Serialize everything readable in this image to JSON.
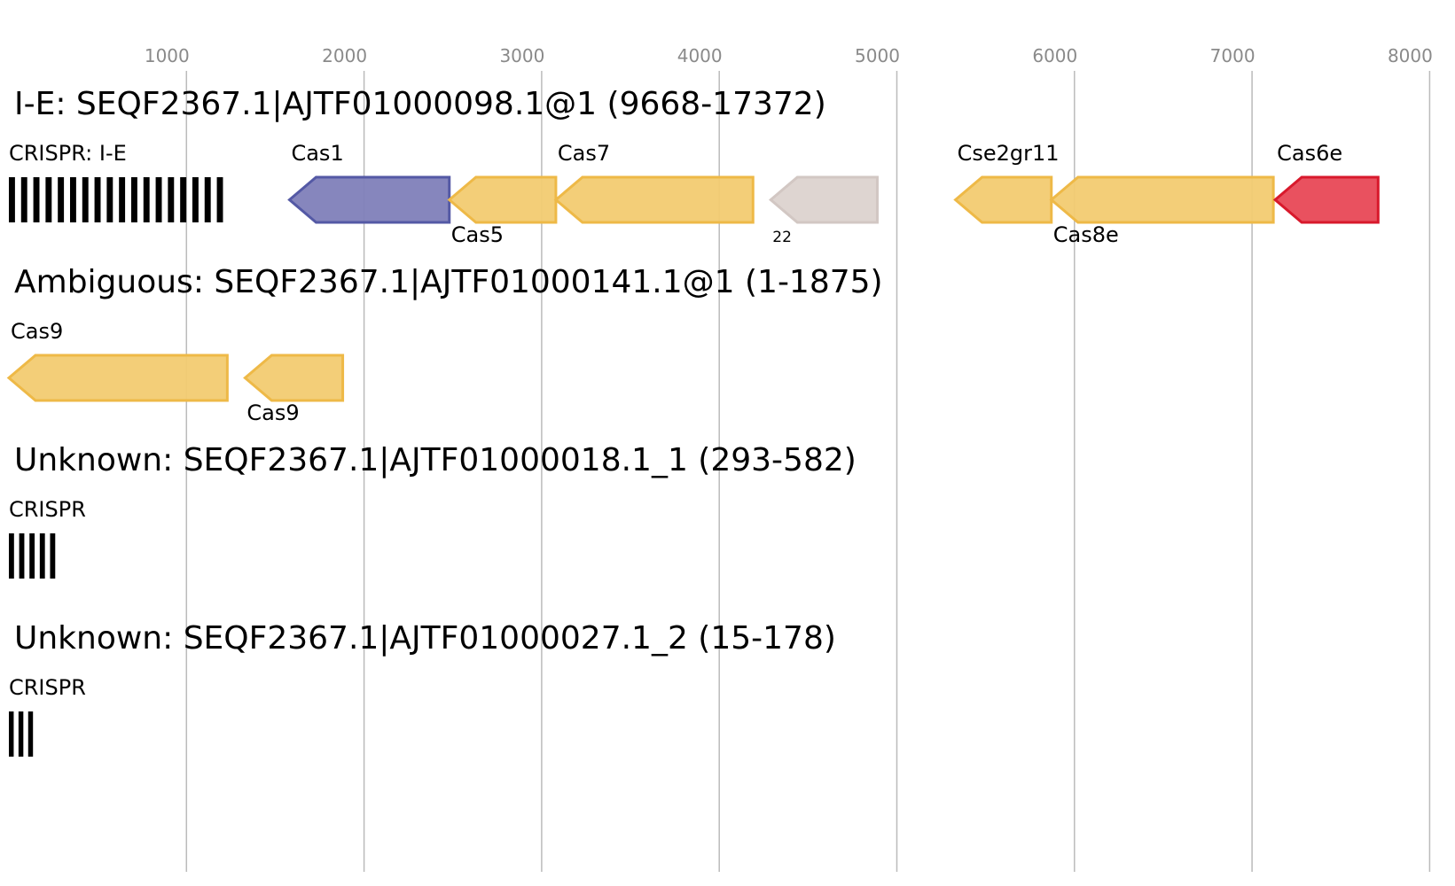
{
  "axis": {
    "ticks": [
      {
        "value": 1000,
        "label": "1000"
      },
      {
        "value": 2000,
        "label": "2000"
      },
      {
        "value": 3000,
        "label": "3000"
      },
      {
        "value": 4000,
        "label": "4000"
      },
      {
        "value": 5000,
        "label": "5000"
      },
      {
        "value": 6000,
        "label": "6000"
      },
      {
        "value": 7000,
        "label": "7000"
      },
      {
        "value": 8000,
        "label": "8000"
      }
    ]
  },
  "colors": {
    "blue": "#7f7fb9",
    "blue_stroke": "#5459a5",
    "yellow": "#f2cb71",
    "yellow_stroke": "#eeb947",
    "grey": "#dcd3cf",
    "grey_stroke": "#d2c7c3",
    "red": "#e84856",
    "red_stroke": "#d8192c",
    "crispr": "#000000",
    "gridline": "#bbbbbb"
  },
  "tracks": [
    {
      "title": "I-E: SEQF2367.1|AJTF01000098.1@1 (9668-17372)",
      "crispr": {
        "label": "CRISPR: I-E",
        "start": 0,
        "end": 1240,
        "bars": 18
      },
      "genes": [
        {
          "name": "Cas1",
          "start": 1580,
          "end": 2480,
          "strand": "-",
          "color": "blue",
          "label_pos": "above"
        },
        {
          "name": "Cas5",
          "start": 2480,
          "end": 3080,
          "strand": "-",
          "color": "yellow",
          "label_pos": "below"
        },
        {
          "name": "Cas7",
          "start": 3080,
          "end": 4190,
          "strand": "-",
          "color": "yellow",
          "label_pos": "above"
        },
        {
          "name": "22",
          "start": 4290,
          "end": 4890,
          "strand": "-",
          "color": "grey",
          "label_pos": "below",
          "small": true
        },
        {
          "name": "Cse2gr11",
          "start": 5330,
          "end": 5870,
          "strand": "-",
          "color": "yellow",
          "label_pos": "above"
        },
        {
          "name": "Cas8e",
          "start": 5870,
          "end": 7120,
          "strand": "-",
          "color": "yellow",
          "label_pos": "below"
        },
        {
          "name": "Cas6e",
          "start": 7130,
          "end": 7710,
          "strand": "-",
          "color": "red",
          "label_pos": "above"
        }
      ]
    },
    {
      "title": "Ambiguous: SEQF2367.1|AJTF01000141.1@1 (1-1875)",
      "genes": [
        {
          "name": "Cas9",
          "start": 0,
          "end": 1230,
          "strand": "-",
          "color": "yellow",
          "label_pos": "above"
        },
        {
          "name": "Cas9",
          "start": 1330,
          "end": 1880,
          "strand": "-",
          "color": "yellow",
          "label_pos": "below"
        }
      ]
    },
    {
      "title": "Unknown: SEQF2367.1|AJTF01000018.1_1 (293-582)",
      "crispr": {
        "label": "CRISPR",
        "start": 0,
        "end": 290,
        "bars": 5
      },
      "genes": []
    },
    {
      "title": "Unknown: SEQF2367.1|AJTF01000027.1_2 (15-178)",
      "crispr": {
        "label": "CRISPR",
        "start": 0,
        "end": 163,
        "bars": 3
      },
      "genes": []
    }
  ]
}
